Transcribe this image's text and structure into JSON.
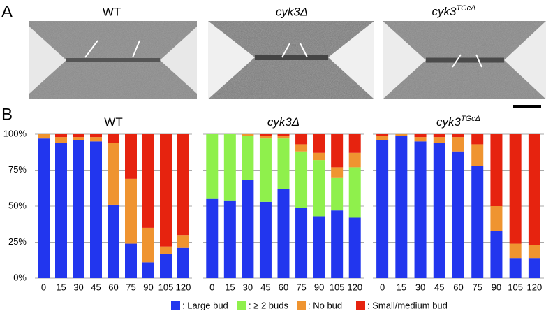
{
  "panel_a": {
    "label": "A",
    "images": [
      {
        "title": "WT"
      },
      {
        "title": "cyk3Δ"
      },
      {
        "title": "cyk3",
        "title_sup": "TGcΔ"
      }
    ]
  },
  "panel_b_label": "B",
  "chart_data": [
    {
      "type": "stacked-bar",
      "title": "WT",
      "categories": [
        "0",
        "15",
        "30",
        "45",
        "60",
        "75",
        "90",
        "105",
        "120"
      ],
      "series": [
        {
          "name": ": Large bud",
          "color": "#2236ee",
          "values": [
            97,
            94,
            96,
            95,
            51,
            24,
            11,
            17,
            21
          ]
        },
        {
          "name": ": ≥ 2 buds",
          "color": "#8ff04c",
          "values": [
            0,
            0,
            0,
            0,
            0,
            0,
            0,
            0,
            0
          ]
        },
        {
          "name": ": No bud",
          "color": "#ef9430",
          "values": [
            3,
            4,
            2,
            3,
            43,
            45,
            24,
            5,
            9
          ]
        },
        {
          "name": ": Small/medium bud",
          "color": "#e6230f",
          "values": [
            0,
            2,
            2,
            2,
            6,
            31,
            65,
            78,
            70
          ]
        }
      ],
      "ylim": [
        0,
        100
      ],
      "yticks": [
        {
          "value": 0,
          "label": "0%"
        },
        {
          "value": 25,
          "label": "25%"
        },
        {
          "value": 50,
          "label": "50%"
        },
        {
          "value": 75,
          "label": "75%"
        },
        {
          "value": 100,
          "label": "100%"
        }
      ],
      "grid": true
    },
    {
      "type": "stacked-bar",
      "title": "cyk3Δ",
      "categories": [
        "0",
        "15",
        "30",
        "45",
        "60",
        "75",
        "90",
        "105",
        "120"
      ],
      "series": [
        {
          "color": "#2236ee",
          "values": [
            55,
            54,
            68,
            53,
            62,
            49,
            43,
            47,
            42
          ]
        },
        {
          "color": "#8ff04c",
          "values": [
            45,
            46,
            31,
            44,
            35,
            39,
            39,
            23,
            35
          ]
        },
        {
          "color": "#ef9430",
          "values": [
            0,
            0,
            1,
            2,
            2,
            5,
            5,
            7,
            10
          ]
        },
        {
          "color": "#e6230f",
          "values": [
            0,
            0,
            0,
            1,
            1,
            7,
            13,
            23,
            13
          ]
        }
      ],
      "ylim": [
        0,
        100
      ],
      "yticks": [
        0,
        25,
        50,
        75,
        100
      ],
      "grid": true
    },
    {
      "type": "stacked-bar",
      "title": "cyk3",
      "title_sup": "TGcΔ",
      "categories": [
        "0",
        "15",
        "30",
        "45",
        "60",
        "75",
        "90",
        "105",
        "120"
      ],
      "series": [
        {
          "color": "#2236ee",
          "values": [
            96,
            99,
            95,
            94,
            88,
            78,
            33,
            14,
            14
          ]
        },
        {
          "color": "#8ff04c",
          "values": [
            0,
            0,
            0,
            0,
            0,
            0,
            0,
            0,
            0
          ]
        },
        {
          "color": "#ef9430",
          "values": [
            3,
            1,
            3,
            4,
            10,
            15,
            17,
            10,
            9
          ]
        },
        {
          "color": "#e6230f",
          "values": [
            1,
            0,
            2,
            2,
            2,
            7,
            50,
            76,
            77
          ]
        }
      ],
      "ylim": [
        0,
        100
      ],
      "yticks": [
        0,
        25,
        50,
        75,
        100
      ],
      "grid": true
    }
  ]
}
